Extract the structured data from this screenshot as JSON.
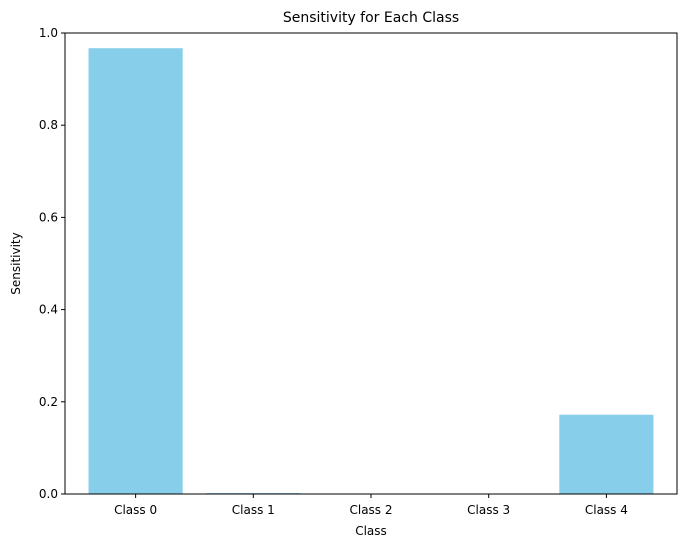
{
  "chart_data": {
    "type": "bar",
    "title": "Sensitivity for Each Class",
    "xlabel": "Class",
    "ylabel": "Sensitivity",
    "categories": [
      "Class 0",
      "Class 1",
      "Class 2",
      "Class 3",
      "Class 4"
    ],
    "values": [
      0.967,
      0.002,
      0.0,
      0.0,
      0.172
    ],
    "ylim": [
      0,
      1.0
    ],
    "yticks": [
      "0.0",
      "0.2",
      "0.4",
      "0.6",
      "0.8",
      "1.0"
    ],
    "bar_color": "#87CEEB",
    "grid": false,
    "legend": false
  }
}
